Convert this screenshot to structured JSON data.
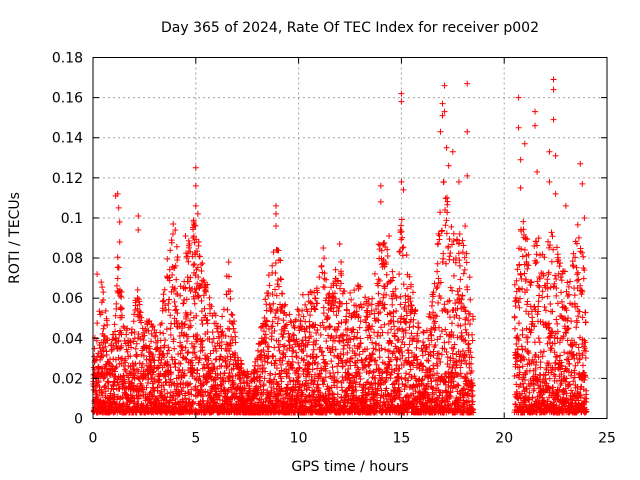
{
  "chart_data": {
    "type": "scatter",
    "title": "Day 365 of 2024, Rate Of TEC Index for receiver p002",
    "xlabel": "GPS time / hours",
    "ylabel": "ROTI / TECUs",
    "xlim": [
      0,
      25
    ],
    "ylim": [
      0,
      0.18
    ],
    "x_ticks": [
      0,
      5,
      10,
      15,
      20,
      25
    ],
    "y_ticks": [
      0,
      0.02,
      0.04,
      0.06,
      0.08,
      0.1,
      0.12,
      0.14,
      0.16,
      0.18
    ],
    "x_tick_labels": [
      "0",
      "5",
      "10",
      "15",
      "20",
      "25"
    ],
    "y_tick_labels": [
      "0",
      "0.02",
      "0.04",
      "0.06",
      "0.08",
      "0.1",
      "0.12",
      "0.14",
      "0.16",
      "0.18"
    ],
    "grid": true,
    "marker": "+",
    "color": "#ff0000",
    "data_gap": [
      18.5,
      20.5
    ],
    "series": [
      {
        "points": [
          [
            0.2,
            0.072
          ],
          [
            0.4,
            0.068
          ],
          [
            0.5,
            0.063
          ],
          [
            1.1,
            0.111
          ],
          [
            1.2,
            0.112
          ],
          [
            1.25,
            0.105
          ],
          [
            1.3,
            0.098
          ],
          [
            1.3,
            0.088
          ],
          [
            2.2,
            0.101
          ],
          [
            2.2,
            0.094
          ],
          [
            3.9,
            0.097
          ],
          [
            4.0,
            0.094
          ],
          [
            4.5,
            0.091
          ],
          [
            4.9,
            0.098
          ],
          [
            5.0,
            0.125
          ],
          [
            5.0,
            0.116
          ],
          [
            5.0,
            0.106
          ],
          [
            5.1,
            0.102
          ],
          [
            6.6,
            0.078
          ],
          [
            8.9,
            0.106
          ],
          [
            8.9,
            0.102
          ],
          [
            8.9,
            0.096
          ],
          [
            11.2,
            0.085
          ],
          [
            12.0,
            0.087
          ],
          [
            14.0,
            0.116
          ],
          [
            14.0,
            0.108
          ],
          [
            14.4,
            0.091
          ],
          [
            15.0,
            0.162
          ],
          [
            15.0,
            0.158
          ],
          [
            15.0,
            0.118
          ],
          [
            15.1,
            0.114
          ],
          [
            16.9,
            0.143
          ],
          [
            17.0,
            0.151
          ],
          [
            17.0,
            0.157
          ],
          [
            17.1,
            0.166
          ],
          [
            17.1,
            0.153
          ],
          [
            17.2,
            0.135
          ],
          [
            17.3,
            0.126
          ],
          [
            17.5,
            0.133
          ],
          [
            17.8,
            0.118
          ],
          [
            18.2,
            0.167
          ],
          [
            18.2,
            0.143
          ],
          [
            18.2,
            0.121
          ],
          [
            18.1,
            0.096
          ],
          [
            20.7,
            0.16
          ],
          [
            20.7,
            0.145
          ],
          [
            20.8,
            0.129
          ],
          [
            20.8,
            0.115
          ],
          [
            21.0,
            0.137
          ],
          [
            21.5,
            0.153
          ],
          [
            21.5,
            0.146
          ],
          [
            21.6,
            0.123
          ],
          [
            22.2,
            0.133
          ],
          [
            22.2,
            0.118
          ],
          [
            22.4,
            0.169
          ],
          [
            22.4,
            0.164
          ],
          [
            22.4,
            0.149
          ],
          [
            22.5,
            0.131
          ],
          [
            22.5,
            0.112
          ],
          [
            23.0,
            0.106
          ],
          [
            23.7,
            0.127
          ],
          [
            23.8,
            0.117
          ],
          [
            23.9,
            0.1
          ]
        ]
      }
    ],
    "envelope": [
      [
        0.0,
        0.035
      ],
      [
        0.2,
        0.045
      ],
      [
        0.5,
        0.07
      ],
      [
        0.8,
        0.03
      ],
      [
        1.0,
        0.045
      ],
      [
        1.2,
        0.08
      ],
      [
        1.5,
        0.055
      ],
      [
        1.8,
        0.035
      ],
      [
        2.1,
        0.07
      ],
      [
        2.4,
        0.05
      ],
      [
        2.8,
        0.045
      ],
      [
        3.2,
        0.04
      ],
      [
        3.6,
        0.08
      ],
      [
        4.0,
        0.095
      ],
      [
        4.3,
        0.06
      ],
      [
        4.6,
        0.088
      ],
      [
        5.0,
        0.1
      ],
      [
        5.4,
        0.07
      ],
      [
        5.8,
        0.055
      ],
      [
        6.2,
        0.045
      ],
      [
        6.6,
        0.075
      ],
      [
        7.0,
        0.03
      ],
      [
        7.4,
        0.022
      ],
      [
        7.8,
        0.02
      ],
      [
        8.2,
        0.045
      ],
      [
        8.5,
        0.065
      ],
      [
        8.9,
        0.095
      ],
      [
        9.3,
        0.06
      ],
      [
        9.7,
        0.045
      ],
      [
        10.0,
        0.055
      ],
      [
        10.4,
        0.065
      ],
      [
        10.8,
        0.06
      ],
      [
        11.2,
        0.08
      ],
      [
        11.6,
        0.065
      ],
      [
        12.0,
        0.08
      ],
      [
        12.4,
        0.06
      ],
      [
        12.8,
        0.065
      ],
      [
        13.2,
        0.065
      ],
      [
        13.6,
        0.06
      ],
      [
        14.0,
        0.095
      ],
      [
        14.4,
        0.08
      ],
      [
        14.8,
        0.065
      ],
      [
        15.0,
        0.1
      ],
      [
        15.4,
        0.07
      ],
      [
        15.8,
        0.045
      ],
      [
        16.2,
        0.04
      ],
      [
        16.6,
        0.065
      ],
      [
        17.0,
        0.12
      ],
      [
        17.4,
        0.1
      ],
      [
        17.8,
        0.09
      ],
      [
        18.2,
        0.085
      ],
      [
        18.45,
        0.05
      ],
      [
        20.6,
        0.08
      ],
      [
        20.9,
        0.1
      ],
      [
        21.3,
        0.075
      ],
      [
        21.6,
        0.09
      ],
      [
        22.0,
        0.08
      ],
      [
        22.4,
        0.1
      ],
      [
        22.8,
        0.07
      ],
      [
        23.2,
        0.075
      ],
      [
        23.6,
        0.095
      ],
      [
        24.0,
        0.07
      ]
    ]
  }
}
